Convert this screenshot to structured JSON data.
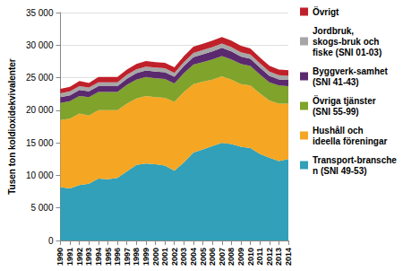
{
  "chart_data": {
    "type": "area",
    "stacked": true,
    "y_label": "Tusen ton koldioxidekvivalenter",
    "categories": [
      "1990",
      "1991",
      "1992",
      "1993",
      "1994",
      "1995",
      "1996",
      "1997",
      "1998",
      "1999",
      "2000",
      "2001",
      "2002",
      "2003",
      "2004",
      "2005",
      "2006",
      "2007",
      "2008",
      "2009",
      "2010",
      "2011",
      "2012",
      "2013",
      "2014"
    ],
    "series": [
      {
        "name": "Transport-branschen (SNI 49-53)",
        "color": "#31a0b8",
        "values": [
          8200,
          8000,
          8500,
          8700,
          9500,
          9400,
          9600,
          10600,
          11600,
          11800,
          11700,
          11500,
          10700,
          12000,
          13500,
          14000,
          14500,
          15000,
          14800,
          14400,
          14200,
          13300,
          12700,
          12200,
          12500
        ]
      },
      {
        "name": "Hushåll och ideella föreningar",
        "color": "#f5a623",
        "values": [
          10300,
          10700,
          11000,
          10500,
          10500,
          10600,
          10400,
          10400,
          10200,
          10400,
          10300,
          10400,
          10600,
          10800,
          10500,
          10400,
          10200,
          10200,
          9900,
          9600,
          9600,
          9300,
          8800,
          8800,
          8500
        ]
      },
      {
        "name": "Övriga tjänster (SNI 55-99)",
        "color": "#7fa32b",
        "values": [
          2600,
          2700,
          2700,
          2800,
          2800,
          2800,
          2800,
          2900,
          2900,
          2900,
          2900,
          2900,
          2800,
          2900,
          3000,
          3000,
          3100,
          3100,
          3100,
          3100,
          3000,
          2900,
          2800,
          2800,
          2700
        ]
      },
      {
        "name": "Byggverk-samhet (SNI 41-43)",
        "color": "#5b2a6e",
        "values": [
          900,
          900,
          900,
          900,
          900,
          900,
          900,
          950,
          1000,
          1000,
          1050,
          1050,
          1050,
          1100,
          1150,
          1200,
          1250,
          1300,
          1250,
          1150,
          1100,
          1050,
          1000,
          950,
          950
        ]
      },
      {
        "name": "Jordbruk, skogs-bruk och fiske (SNI 01-03)",
        "color": "#a6a6a6",
        "values": [
          600,
          600,
          600,
          600,
          600,
          600,
          600,
          600,
          600,
          600,
          600,
          600,
          600,
          600,
          650,
          650,
          650,
          650,
          650,
          650,
          650,
          650,
          650,
          650,
          650
        ]
      },
      {
        "name": "Övrigt",
        "color": "#c0202a",
        "values": [
          700,
          700,
          800,
          700,
          800,
          800,
          800,
          800,
          800,
          850,
          850,
          850,
          850,
          900,
          950,
          950,
          1000,
          1000,
          1000,
          1000,
          950,
          900,
          900,
          850,
          850
        ]
      }
    ],
    "ylim": [
      0,
      35000
    ],
    "yticks": [
      0,
      {
        "value": 5000,
        "label": "5 000"
      },
      {
        "value": 10000,
        "label": "10 000"
      },
      {
        "value": 15000,
        "label": "15 000"
      },
      {
        "value": 20000,
        "label": "20 000"
      },
      {
        "value": 25000,
        "label": "25 000"
      },
      {
        "value": 30000,
        "label": "30 000"
      },
      {
        "value": 35000,
        "label": "35 000"
      }
    ],
    "grid": true,
    "legend": "right"
  }
}
